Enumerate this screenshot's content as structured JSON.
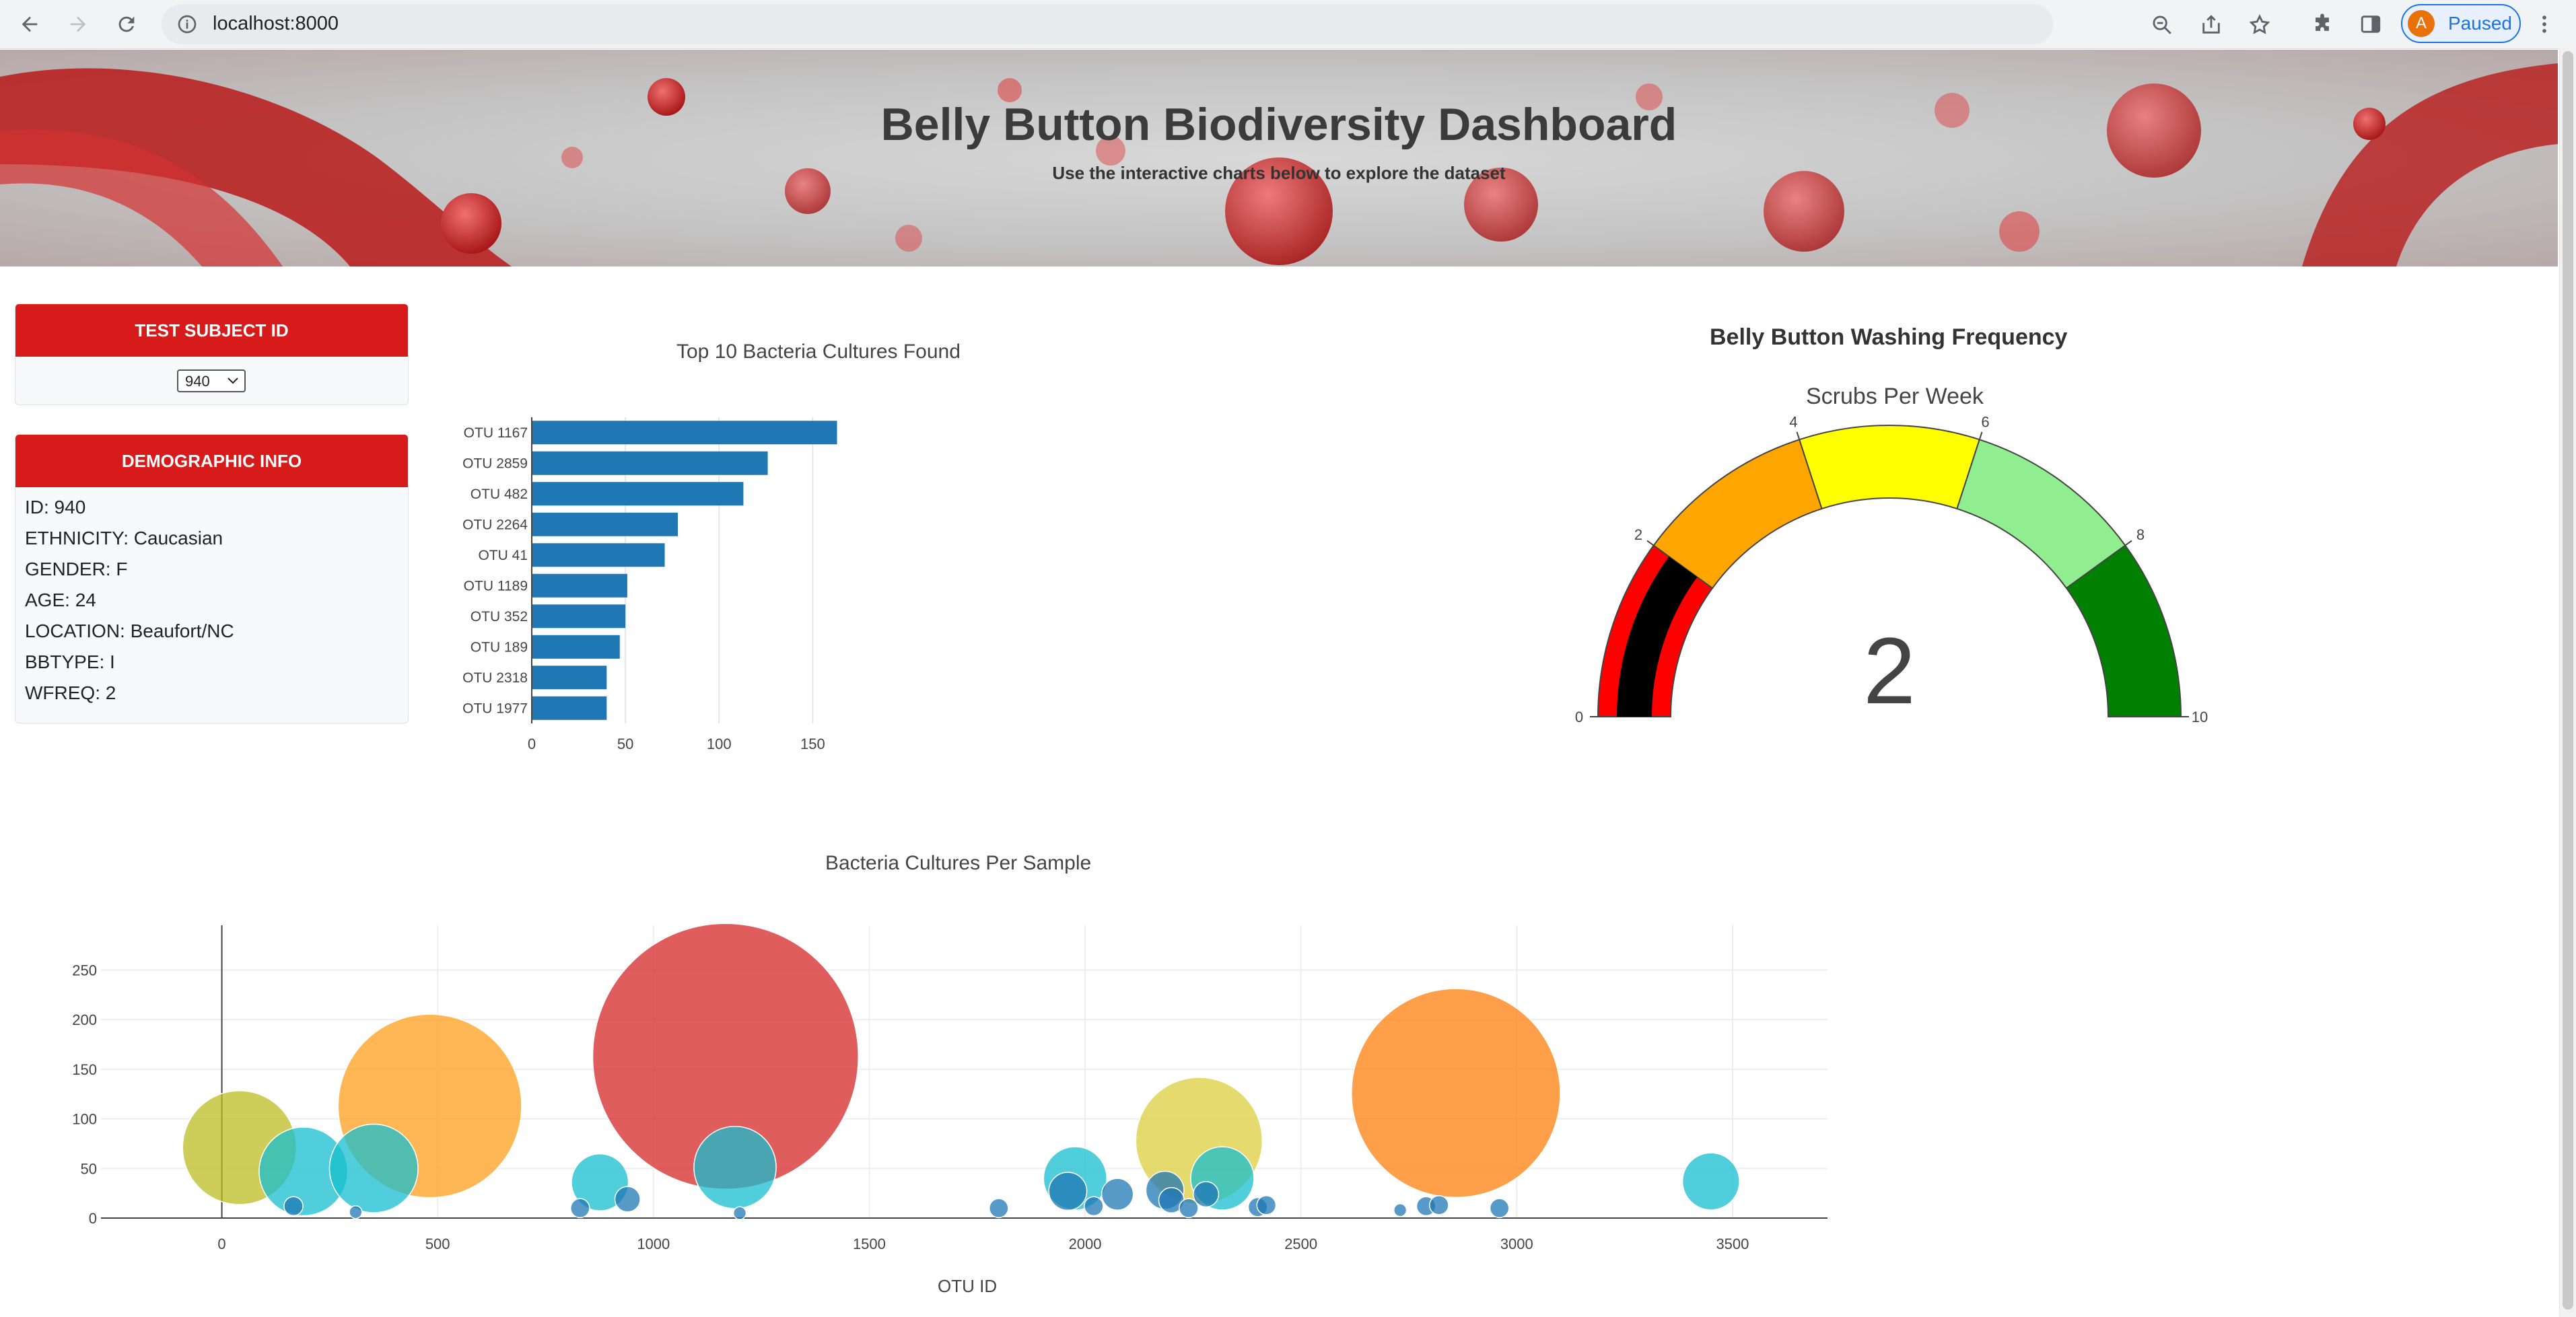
{
  "browser": {
    "url": "localhost:8000",
    "profile_initial": "A",
    "profile_status": "Paused"
  },
  "banner": {
    "title": "Belly Button Biodiversity Dashboard",
    "subtitle": "Use the interactive charts below to explore the dataset"
  },
  "subject": {
    "header": "TEST SUBJECT ID",
    "selected": "940"
  },
  "demographics": {
    "header": "DEMOGRAPHIC INFO",
    "lines": [
      "ID: 940",
      "ETHNICITY: Caucasian",
      "GENDER: F",
      "AGE: 24",
      "LOCATION: Beaufort/NC",
      "BBTYPE: I",
      "WFREQ: 2"
    ]
  },
  "colors": {
    "accent": "#d71a1a",
    "bar": "#1f77b4"
  },
  "chart_data": [
    {
      "type": "bar",
      "orientation": "horizontal",
      "title": "Top 10 Bacteria Cultures Found",
      "categories": [
        "OTU 1167",
        "OTU 2859",
        "OTU 482",
        "OTU 2264",
        "OTU 41",
        "OTU 1189",
        "OTU 352",
        "OTU 189",
        "OTU 2318",
        "OTU 1977"
      ],
      "values": [
        163,
        126,
        113,
        78,
        71,
        51,
        50,
        47,
        40,
        40
      ],
      "xticks": [
        "0",
        "50",
        "100",
        "150"
      ],
      "xlim": [
        0,
        170
      ],
      "grid": true
    },
    {
      "type": "gauge",
      "title": "Belly Button Washing Frequency",
      "subtitle": "Scrubs Per Week",
      "value": 2,
      "value_text": "2",
      "range": [
        0,
        10
      ],
      "ticks": [
        "0",
        "2",
        "4",
        "6",
        "8",
        "10"
      ],
      "steps": [
        {
          "range": [
            0,
            2
          ],
          "color": "#ff0000"
        },
        {
          "range": [
            2,
            4
          ],
          "color": "#ffa500"
        },
        {
          "range": [
            4,
            6
          ],
          "color": "#ffff00"
        },
        {
          "range": [
            6,
            8
          ],
          "color": "#90ee90"
        },
        {
          "range": [
            8,
            10
          ],
          "color": "#008000"
        }
      ],
      "bar_color": "#000000"
    },
    {
      "type": "scatter",
      "style": "bubble",
      "title": "Bacteria Cultures Per Sample",
      "xlabel": "OTU ID",
      "xticks": [
        "0",
        "500",
        "1000",
        "1500",
        "2000",
        "2500",
        "3000",
        "3500"
      ],
      "yticks": [
        "0",
        "50",
        "100",
        "150",
        "200",
        "250"
      ],
      "xlim": [
        -280,
        3720
      ],
      "ylim": [
        0,
        295
      ],
      "grid": true,
      "points": [
        {
          "x": 41,
          "y": 71,
          "color": "#bcbd22"
        },
        {
          "x": 189,
          "y": 47,
          "color": "#17becf"
        },
        {
          "x": 352,
          "y": 50,
          "color": "#17becf"
        },
        {
          "x": 482,
          "y": 113,
          "color": "#ff9f1c"
        },
        {
          "x": 166,
          "y": 12,
          "color": "#1f77b4"
        },
        {
          "x": 310,
          "y": 6,
          "color": "#1f77b4"
        },
        {
          "x": 830,
          "y": 10,
          "color": "#1f77b4"
        },
        {
          "x": 876,
          "y": 36,
          "color": "#17becf"
        },
        {
          "x": 940,
          "y": 19,
          "color": "#1f77b4"
        },
        {
          "x": 1167,
          "y": 163,
          "color": "#d62728"
        },
        {
          "x": 1189,
          "y": 51,
          "color": "#17becf"
        },
        {
          "x": 1200,
          "y": 5,
          "color": "#1f77b4"
        },
        {
          "x": 1800,
          "y": 10,
          "color": "#1f77b4"
        },
        {
          "x": 1960,
          "y": 27,
          "color": "#1f77b4"
        },
        {
          "x": 1977,
          "y": 40,
          "color": "#17becf"
        },
        {
          "x": 2020,
          "y": 12,
          "color": "#1f77b4"
        },
        {
          "x": 2075,
          "y": 24,
          "color": "#1f77b4"
        },
        {
          "x": 2185,
          "y": 28,
          "color": "#1f77b4"
        },
        {
          "x": 2200,
          "y": 18,
          "color": "#1f77b4"
        },
        {
          "x": 2240,
          "y": 10,
          "color": "#1f77b4"
        },
        {
          "x": 2264,
          "y": 78,
          "color": "#dbcd3c"
        },
        {
          "x": 2280,
          "y": 24,
          "color": "#1f77b4"
        },
        {
          "x": 2318,
          "y": 40,
          "color": "#17becf"
        },
        {
          "x": 2400,
          "y": 11,
          "color": "#1f77b4"
        },
        {
          "x": 2420,
          "y": 13,
          "color": "#1f77b4"
        },
        {
          "x": 2730,
          "y": 8,
          "color": "#1f77b4"
        },
        {
          "x": 2790,
          "y": 12,
          "color": "#1f77b4"
        },
        {
          "x": 2820,
          "y": 13,
          "color": "#1f77b4"
        },
        {
          "x": 2859,
          "y": 126,
          "color": "#ff7f0e"
        },
        {
          "x": 2960,
          "y": 10,
          "color": "#1f77b4"
        },
        {
          "x": 3450,
          "y": 37,
          "color": "#17becf"
        }
      ],
      "sizes": [
        18,
        14,
        14,
        29,
        3,
        2,
        3,
        9,
        4,
        42,
        13,
        2,
        3,
        6,
        10,
        3,
        5,
        6,
        4,
        3,
        20,
        4,
        10,
        3,
        3,
        2,
        3,
        3,
        33,
        3,
        9
      ]
    }
  ]
}
